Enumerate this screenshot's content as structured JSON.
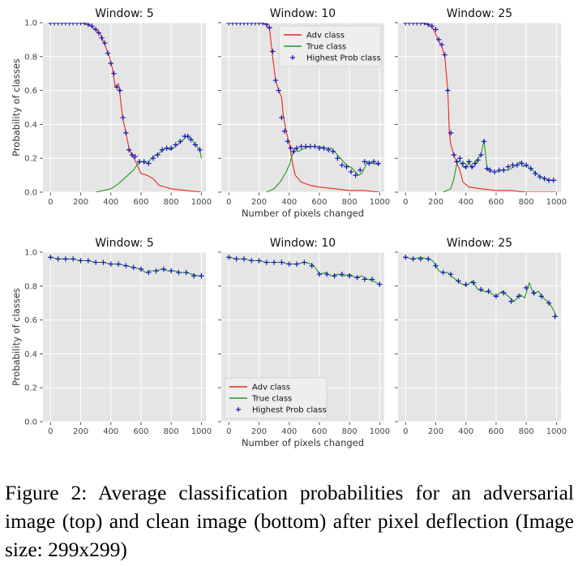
{
  "caption": "Figure 2: Average classification probabilities for an adversarial image (top) and clean image (bottom) after pixel deflection (Image size: 299x299)",
  "colors": {
    "adv": "#e8281c",
    "true": "#1f9a1f",
    "marker": "#1616b8",
    "panel_bg": "#e5e5e5",
    "grid": "#ffffff"
  },
  "chart_data": [
    {
      "type": "line",
      "title": "Window: 5",
      "xlabel": "",
      "ylabel": "Probability of classes",
      "xlim": [
        -50,
        1030
      ],
      "ylim": [
        0,
        1.0
      ],
      "xticks": [
        "0",
        "200",
        "400",
        "600",
        "800",
        "1000"
      ],
      "yticks": [
        "0.0",
        "0.2",
        "0.4",
        "0.6",
        "0.8",
        "1.0"
      ],
      "legend": null,
      "series": [
        {
          "name": "Adv class",
          "color": "adv",
          "x": [
            0,
            100,
            200,
            250,
            300,
            330,
            360,
            390,
            410,
            430,
            450,
            460,
            470,
            480,
            500,
            520,
            540,
            560,
            600,
            640,
            680,
            720,
            800,
            900,
            1000
          ],
          "y": [
            1.0,
            1.0,
            1.0,
            0.99,
            0.96,
            0.93,
            0.87,
            0.8,
            0.73,
            0.62,
            0.64,
            0.58,
            0.5,
            0.43,
            0.35,
            0.26,
            0.22,
            0.19,
            0.11,
            0.1,
            0.08,
            0.04,
            0.02,
            0.01,
            0.0
          ]
        },
        {
          "name": "True class",
          "color": "true",
          "x": [
            300,
            350,
            400,
            450,
            500,
            550,
            580,
            600,
            640,
            680,
            720,
            760,
            800,
            840,
            870,
            900,
            930,
            960,
            990,
            1000
          ],
          "y": [
            0.0,
            0.01,
            0.02,
            0.05,
            0.09,
            0.13,
            0.17,
            0.18,
            0.17,
            0.21,
            0.23,
            0.26,
            0.25,
            0.28,
            0.3,
            0.33,
            0.32,
            0.28,
            0.25,
            0.2
          ]
        },
        {
          "name": "Highest Prob class",
          "color": "marker",
          "marker": "+",
          "x": [
            0,
            25,
            50,
            75,
            100,
            125,
            150,
            175,
            200,
            225,
            250,
            275,
            300,
            320,
            340,
            360,
            380,
            400,
            420,
            440,
            460,
            480,
            500,
            520,
            540,
            560,
            590,
            620,
            650,
            680,
            710,
            740,
            770,
            800,
            830,
            860,
            890,
            910,
            930,
            960,
            990
          ],
          "y": [
            1.0,
            1.0,
            1.0,
            1.0,
            1.0,
            1.0,
            1.0,
            1.0,
            1.0,
            1.0,
            0.99,
            0.98,
            0.96,
            0.94,
            0.91,
            0.88,
            0.82,
            0.76,
            0.7,
            0.62,
            0.6,
            0.44,
            0.35,
            0.25,
            0.22,
            0.21,
            0.18,
            0.18,
            0.17,
            0.2,
            0.22,
            0.25,
            0.26,
            0.26,
            0.28,
            0.3,
            0.33,
            0.33,
            0.31,
            0.28,
            0.25
          ]
        }
      ]
    },
    {
      "type": "line",
      "title": "Window: 10",
      "xlabel": "Number of pixels changed",
      "ylabel": "",
      "xlim": [
        -50,
        1030
      ],
      "ylim": [
        0,
        1.0
      ],
      "xticks": [
        "0",
        "200",
        "400",
        "600",
        "800",
        "1000"
      ],
      "yticks": [
        "",
        "",
        "",
        "",
        "",
        ""
      ],
      "legend": "top-right",
      "series": [
        {
          "name": "Adv class",
          "color": "adv",
          "x": [
            0,
            100,
            200,
            250,
            270,
            290,
            310,
            330,
            350,
            360,
            380,
            400,
            420,
            440,
            480,
            540,
            600,
            700,
            800,
            900,
            1000
          ],
          "y": [
            1.0,
            1.0,
            1.0,
            0.99,
            0.96,
            0.8,
            0.66,
            0.6,
            0.56,
            0.46,
            0.36,
            0.29,
            0.18,
            0.1,
            0.06,
            0.04,
            0.03,
            0.02,
            0.01,
            0.01,
            0.0
          ]
        },
        {
          "name": "True class",
          "color": "true",
          "x": [
            250,
            300,
            340,
            380,
            400,
            420,
            440,
            460,
            500,
            540,
            600,
            640,
            680,
            700,
            740,
            780,
            820,
            860,
            880,
            920,
            960,
            1000
          ],
          "y": [
            0.0,
            0.02,
            0.06,
            0.12,
            0.16,
            0.22,
            0.26,
            0.24,
            0.26,
            0.27,
            0.27,
            0.26,
            0.26,
            0.24,
            0.2,
            0.16,
            0.14,
            0.1,
            0.11,
            0.18,
            0.17,
            0.16
          ]
        },
        {
          "name": "Highest Prob class",
          "color": "marker",
          "marker": "+",
          "x": [
            0,
            25,
            50,
            75,
            100,
            125,
            150,
            175,
            200,
            225,
            250,
            270,
            290,
            310,
            330,
            350,
            370,
            390,
            410,
            430,
            450,
            480,
            510,
            540,
            570,
            600,
            630,
            660,
            690,
            720,
            750,
            780,
            810,
            840,
            870,
            900,
            930,
            960,
            990
          ],
          "y": [
            1.0,
            1.0,
            1.0,
            1.0,
            1.0,
            1.0,
            1.0,
            1.0,
            1.0,
            1.0,
            0.99,
            0.97,
            0.83,
            0.66,
            0.6,
            0.44,
            0.36,
            0.3,
            0.26,
            0.24,
            0.26,
            0.27,
            0.27,
            0.27,
            0.27,
            0.26,
            0.26,
            0.25,
            0.24,
            0.2,
            0.16,
            0.15,
            0.12,
            0.1,
            0.13,
            0.18,
            0.17,
            0.18,
            0.17
          ]
        }
      ]
    },
    {
      "type": "line",
      "title": "Window: 25",
      "xlabel": "",
      "ylabel": "",
      "xlim": [
        -50,
        1030
      ],
      "ylim": [
        0,
        1.0
      ],
      "xticks": [
        "0",
        "200",
        "400",
        "600",
        "800",
        "1000"
      ],
      "yticks": [
        "",
        "",
        "",
        "",
        "",
        ""
      ],
      "legend": null,
      "series": [
        {
          "name": "Adv class",
          "color": "adv",
          "x": [
            0,
            100,
            150,
            180,
            200,
            220,
            240,
            260,
            280,
            290,
            300,
            320,
            340,
            360,
            380,
            420,
            500,
            600,
            700,
            800,
            900,
            1000
          ],
          "y": [
            1.0,
            1.0,
            0.99,
            0.97,
            0.93,
            0.89,
            0.86,
            0.8,
            0.6,
            0.35,
            0.28,
            0.22,
            0.17,
            0.13,
            0.06,
            0.03,
            0.02,
            0.01,
            0.01,
            0.0,
            0.0,
            0.0
          ]
        },
        {
          "name": "True class",
          "color": "true",
          "x": [
            250,
            300,
            320,
            340,
            360,
            380,
            400,
            420,
            440,
            460,
            480,
            500,
            520,
            540,
            560,
            600,
            640,
            680,
            720,
            760,
            780,
            800,
            840,
            880,
            920,
            960,
            1000
          ],
          "y": [
            0.0,
            0.02,
            0.08,
            0.17,
            0.19,
            0.15,
            0.14,
            0.18,
            0.14,
            0.16,
            0.2,
            0.22,
            0.31,
            0.14,
            0.12,
            0.12,
            0.13,
            0.13,
            0.15,
            0.18,
            0.15,
            0.16,
            0.13,
            0.1,
            0.08,
            0.07,
            0.07
          ]
        },
        {
          "name": "Highest Prob class",
          "color": "marker",
          "marker": "+",
          "x": [
            0,
            25,
            50,
            75,
            100,
            125,
            150,
            175,
            200,
            220,
            240,
            260,
            280,
            300,
            320,
            340,
            360,
            380,
            400,
            420,
            440,
            460,
            480,
            500,
            520,
            540,
            560,
            590,
            620,
            650,
            680,
            710,
            740,
            770,
            800,
            830,
            860,
            890,
            920,
            950,
            980
          ],
          "y": [
            1.0,
            1.0,
            1.0,
            1.0,
            1.0,
            1.0,
            0.99,
            0.98,
            0.96,
            0.9,
            0.87,
            0.81,
            0.6,
            0.35,
            0.22,
            0.18,
            0.2,
            0.17,
            0.15,
            0.18,
            0.15,
            0.17,
            0.19,
            0.22,
            0.3,
            0.14,
            0.13,
            0.12,
            0.13,
            0.13,
            0.15,
            0.16,
            0.16,
            0.17,
            0.16,
            0.14,
            0.11,
            0.09,
            0.08,
            0.07,
            0.07
          ]
        }
      ]
    },
    {
      "type": "line",
      "title": "Window: 5",
      "xlabel": "",
      "ylabel": "Probability of classes",
      "xlim": [
        -50,
        1030
      ],
      "ylim": [
        0,
        1.0
      ],
      "xticks": [
        "0",
        "200",
        "400",
        "600",
        "800",
        "1000"
      ],
      "yticks": [
        "0.0",
        "0.2",
        "0.4",
        "0.6",
        "0.8",
        "1.0"
      ],
      "legend": null,
      "series": [
        {
          "name": "True class",
          "color": "true",
          "x": [
            0,
            50,
            100,
            150,
            200,
            250,
            300,
            350,
            400,
            450,
            500,
            550,
            600,
            630,
            660,
            700,
            740,
            780,
            820,
            860,
            900,
            940,
            980,
            1000
          ],
          "y": [
            0.97,
            0.96,
            0.96,
            0.96,
            0.95,
            0.95,
            0.94,
            0.94,
            0.93,
            0.93,
            0.92,
            0.91,
            0.9,
            0.88,
            0.89,
            0.89,
            0.9,
            0.89,
            0.89,
            0.88,
            0.88,
            0.87,
            0.86,
            0.86
          ]
        },
        {
          "name": "Highest Prob class",
          "color": "marker",
          "marker": "+",
          "x": [
            0,
            50,
            100,
            150,
            200,
            250,
            300,
            350,
            400,
            450,
            500,
            550,
            600,
            650,
            700,
            750,
            800,
            850,
            900,
            950,
            1000
          ],
          "y": [
            0.97,
            0.96,
            0.96,
            0.96,
            0.95,
            0.95,
            0.94,
            0.94,
            0.93,
            0.93,
            0.92,
            0.91,
            0.9,
            0.88,
            0.89,
            0.9,
            0.89,
            0.88,
            0.88,
            0.86,
            0.86
          ]
        }
      ]
    },
    {
      "type": "line",
      "title": "Window: 10",
      "xlabel": "Number of pixels changed",
      "ylabel": "",
      "xlim": [
        -50,
        1030
      ],
      "ylim": [
        0,
        1.0
      ],
      "xticks": [
        "0",
        "200",
        "400",
        "600",
        "800",
        "1000"
      ],
      "yticks": [
        "",
        "",
        "",
        "",
        "",
        ""
      ],
      "legend": "bottom-left",
      "series": [
        {
          "name": "Adv class",
          "color": "adv",
          "x": [],
          "y": []
        },
        {
          "name": "True class",
          "color": "true",
          "x": [
            0,
            50,
            100,
            150,
            200,
            250,
            300,
            350,
            400,
            450,
            500,
            550,
            580,
            600,
            640,
            680,
            720,
            760,
            800,
            840,
            880,
            920,
            960,
            1000
          ],
          "y": [
            0.97,
            0.96,
            0.96,
            0.95,
            0.95,
            0.94,
            0.94,
            0.94,
            0.93,
            0.93,
            0.94,
            0.93,
            0.9,
            0.87,
            0.88,
            0.86,
            0.87,
            0.86,
            0.87,
            0.85,
            0.86,
            0.84,
            0.83,
            0.81
          ]
        },
        {
          "name": "Highest Prob class",
          "color": "marker",
          "marker": "+",
          "x": [
            0,
            50,
            100,
            150,
            200,
            250,
            300,
            350,
            400,
            450,
            500,
            550,
            600,
            650,
            700,
            750,
            800,
            850,
            900,
            950,
            1000
          ],
          "y": [
            0.97,
            0.96,
            0.96,
            0.95,
            0.95,
            0.94,
            0.94,
            0.94,
            0.93,
            0.93,
            0.94,
            0.92,
            0.87,
            0.87,
            0.86,
            0.87,
            0.86,
            0.85,
            0.84,
            0.84,
            0.81
          ]
        }
      ]
    },
    {
      "type": "line",
      "title": "Window: 25",
      "xlabel": "",
      "ylabel": "",
      "xlim": [
        -50,
        1030
      ],
      "ylim": [
        0,
        1.0
      ],
      "xticks": [
        "0",
        "200",
        "400",
        "600",
        "800",
        "1000"
      ],
      "yticks": [
        "",
        "",
        "",
        "",
        "",
        ""
      ],
      "legend": null,
      "series": [
        {
          "name": "True class",
          "color": "true",
          "x": [
            0,
            50,
            100,
            150,
            180,
            200,
            220,
            250,
            280,
            300,
            330,
            360,
            400,
            440,
            480,
            520,
            560,
            600,
            640,
            680,
            720,
            760,
            790,
            820,
            850,
            880,
            910,
            940,
            960,
            980,
            1000
          ],
          "y": [
            0.97,
            0.96,
            0.97,
            0.96,
            0.95,
            0.92,
            0.89,
            0.88,
            0.88,
            0.86,
            0.84,
            0.82,
            0.8,
            0.83,
            0.78,
            0.77,
            0.76,
            0.74,
            0.77,
            0.74,
            0.71,
            0.75,
            0.73,
            0.82,
            0.75,
            0.77,
            0.73,
            0.71,
            0.69,
            0.66,
            0.62
          ]
        },
        {
          "name": "Highest Prob class",
          "color": "marker",
          "marker": "+",
          "x": [
            0,
            50,
            100,
            150,
            200,
            250,
            300,
            350,
            400,
            450,
            500,
            550,
            600,
            650,
            700,
            750,
            800,
            850,
            900,
            950,
            990
          ],
          "y": [
            0.97,
            0.96,
            0.96,
            0.96,
            0.92,
            0.88,
            0.87,
            0.83,
            0.81,
            0.82,
            0.78,
            0.77,
            0.74,
            0.76,
            0.71,
            0.74,
            0.79,
            0.76,
            0.74,
            0.7,
            0.62
          ]
        }
      ]
    }
  ]
}
